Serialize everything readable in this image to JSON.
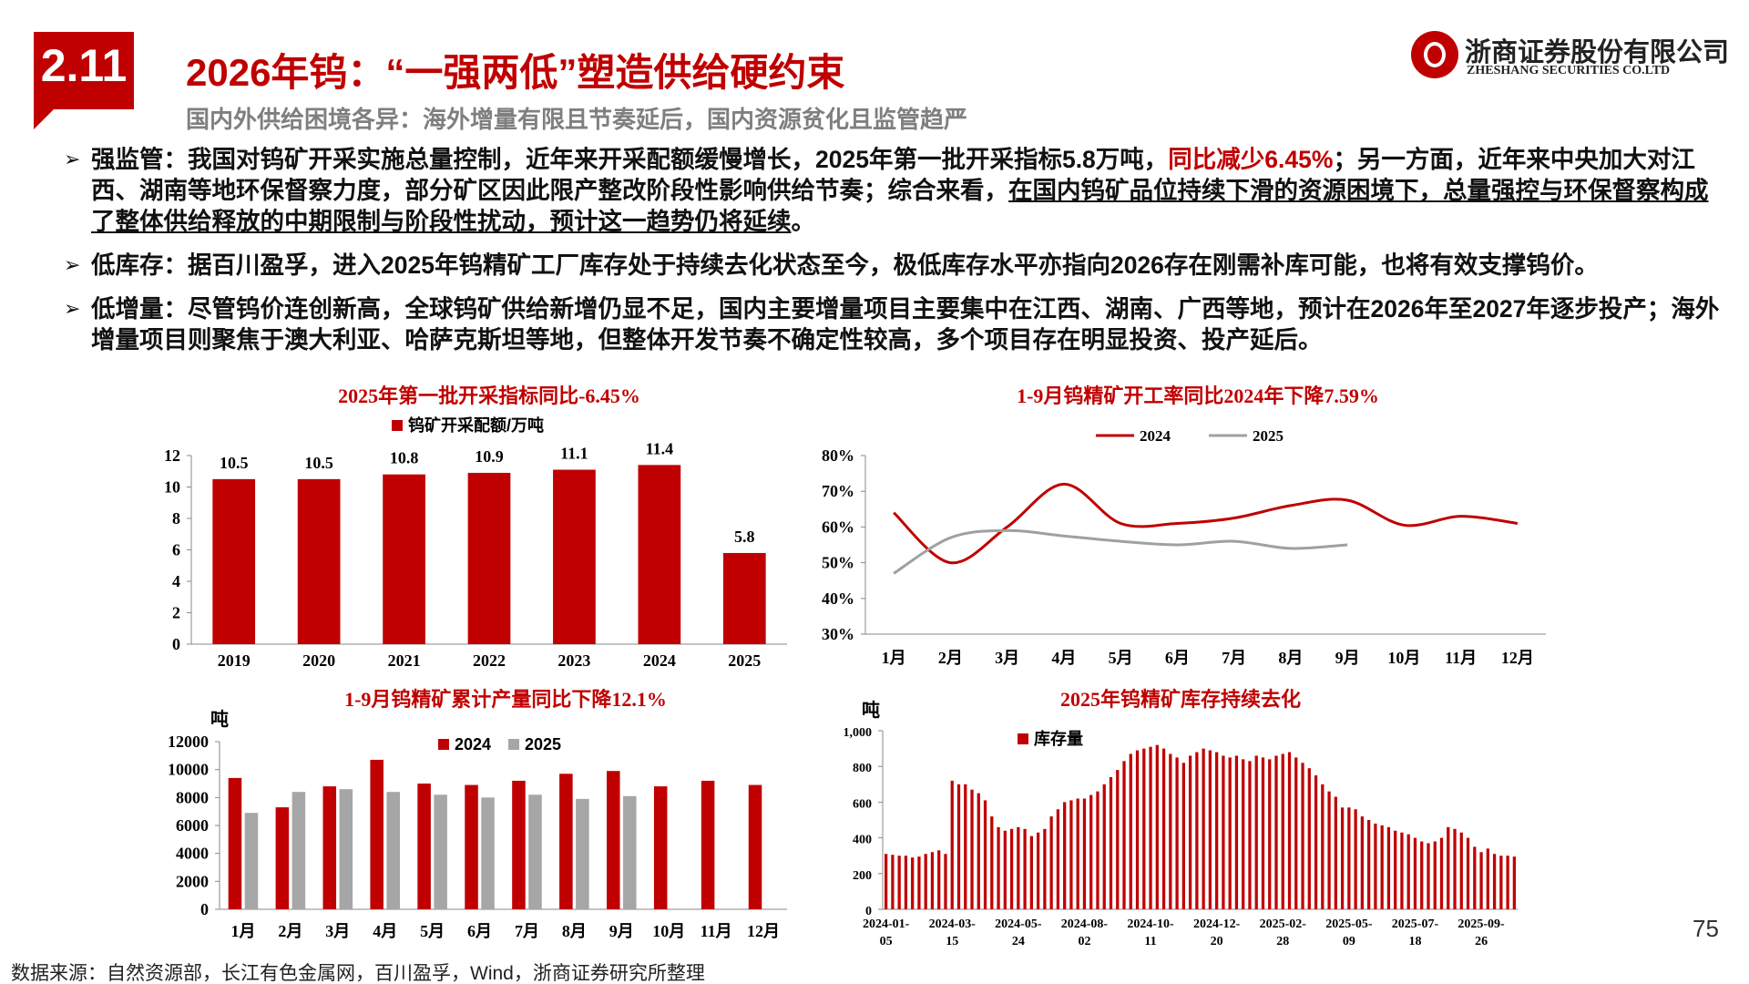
{
  "header": {
    "badge": "2.11",
    "title": "2026年钨：“一强两低”塑造供给硬约束",
    "subtitle": "国内外供给困境各异：海外增量有限且节奏延后，国内资源贫化且监管趋严",
    "company": "浙商证券股份有限公司",
    "company_en": "ZHESHANG SECURITIES CO.LTD"
  },
  "bullets": [
    [
      {
        "text": "强监管：我国对钨矿开采实施总量控制，近年来开采配额缓慢增长，2025年第一批开采指标5.8万吨，",
        "style": "normal"
      },
      {
        "text": "同比减少6.45%",
        "style": "red"
      },
      {
        "text": "；另一方面，近年来中央加大对江西、湖南等地环保督察力度，部分矿区因此限产整改阶段性影响供给节奏；综合来看，",
        "style": "normal"
      },
      {
        "text": "在国内钨矿品位持续下滑的资源困境下，总量强控与环保督察构成了整体供给释放的中期限制与阶段性扰动，预计这一趋势仍将延续",
        "style": "underline"
      },
      {
        "text": "。",
        "style": "normal"
      }
    ],
    [
      {
        "text": "低库存：据百川盈孚，进入2025年钨精矿工厂库存处于持续去化状态至今，极低库存水平亦指向2026存在刚需补库可能，也将有效支撑钨价。",
        "style": "normal"
      }
    ],
    [
      {
        "text": "低增量：尽管钨价连创新高，全球钨矿供给新增仍显不足，国内主要增量项目主要集中在江西、湖南、广西等地，预计在2026年至2027年逐步投产；海外增量项目则聚焦于澳大利亚、哈萨克斯坦等地，但整体开发节奏不确定性较高，多个项目存在明显投资、投产延后。",
        "style": "normal"
      }
    ]
  ],
  "page_number": "75",
  "source": "数据来源：自然资源部，长江有色金属网，百川盈孚，Wind，浙商证券研究所整理",
  "chart_data": [
    {
      "type": "bar",
      "title": "2025年第一批开采指标同比-6.45%",
      "categories": [
        "2019",
        "2020",
        "2021",
        "2022",
        "2023",
        "2024",
        "2025"
      ],
      "series": [
        {
          "name": "钨矿开采配额/万吨",
          "color": "#c00000",
          "values": [
            10.5,
            10.5,
            10.8,
            10.9,
            11.1,
            11.4,
            5.8
          ]
        }
      ],
      "ylim": [
        0,
        12
      ],
      "yticks": [
        0,
        2,
        4,
        6,
        8,
        10,
        12
      ],
      "data_labels": true,
      "grid": false
    },
    {
      "type": "line",
      "title": "1-9月钨精矿开工率同比2024年下降7.59%",
      "categories": [
        "1月",
        "2月",
        "3月",
        "4月",
        "5月",
        "6月",
        "7月",
        "8月",
        "9月",
        "10月",
        "11月",
        "12月"
      ],
      "series": [
        {
          "name": "2024",
          "color": "#c00000",
          "values": [
            64,
            50,
            60,
            72,
            61,
            61,
            62.5,
            66,
            67.5,
            60.5,
            63,
            61
          ]
        },
        {
          "name": "2025",
          "color": "#a0a0a0",
          "values": [
            47,
            57,
            59,
            57.5,
            56,
            55,
            56,
            54,
            55,
            null,
            null,
            null
          ]
        }
      ],
      "ylim": [
        30,
        80
      ],
      "yticks": [
        {
          "value": 30,
          "label": "30%"
        },
        {
          "value": 40,
          "label": "40%"
        },
        {
          "value": 50,
          "label": "50%"
        },
        {
          "value": 60,
          "label": "60%"
        },
        {
          "value": 70,
          "label": "70%"
        },
        {
          "value": 80,
          "label": "80%"
        }
      ],
      "grid": false
    },
    {
      "type": "bar",
      "title": "1-9月钨精矿累计产量同比下降12.1%",
      "y_label": "吨",
      "categories": [
        "1月",
        "2月",
        "3月",
        "4月",
        "5月",
        "6月",
        "7月",
        "8月",
        "9月",
        "10月",
        "11月",
        "12月"
      ],
      "series": [
        {
          "name": "2024",
          "color": "#c00000",
          "values": [
            9400,
            7300,
            8800,
            10700,
            9000,
            8900,
            9200,
            9700,
            9900,
            8800,
            9200,
            8900
          ]
        },
        {
          "name": "2025",
          "color": "#a6a6a6",
          "values": [
            6900,
            8400,
            8600,
            8400,
            8200,
            8000,
            8200,
            7900,
            8100,
            null,
            null,
            null
          ]
        }
      ],
      "ylim": [
        0,
        12000
      ],
      "yticks": [
        0,
        2000,
        4000,
        6000,
        8000,
        10000,
        12000
      ],
      "grid": false
    },
    {
      "type": "bar",
      "title": "2025年钨精矿库存持续去化",
      "y_label": "吨",
      "categories": [
        "2024-01-05",
        null,
        null,
        null,
        null,
        null,
        null,
        null,
        null,
        null,
        "2024-03-15",
        null,
        null,
        null,
        null,
        null,
        null,
        null,
        null,
        null,
        "2024-05-24",
        null,
        null,
        null,
        null,
        null,
        null,
        null,
        null,
        null,
        "2024-08-02",
        null,
        null,
        null,
        null,
        null,
        null,
        null,
        null,
        null,
        "2024-10-11",
        null,
        null,
        null,
        null,
        null,
        null,
        null,
        null,
        null,
        "2024-12-20",
        null,
        null,
        null,
        null,
        null,
        null,
        null,
        null,
        null,
        "2025-02-28",
        null,
        null,
        null,
        null,
        null,
        null,
        null,
        null,
        null,
        "2025-05-09",
        null,
        null,
        null,
        null,
        null,
        null,
        null,
        null,
        null,
        "2025-07-18",
        null,
        null,
        null,
        null,
        null,
        null,
        null,
        null,
        null,
        "2025-09-26",
        null,
        null,
        null,
        null,
        null
      ],
      "series": [
        {
          "name": "库存量",
          "color": "#c00000",
          "values": [
            310,
            305,
            300,
            300,
            290,
            295,
            310,
            320,
            330,
            310,
            720,
            700,
            700,
            670,
            650,
            610,
            520,
            460,
            440,
            450,
            460,
            450,
            410,
            430,
            450,
            520,
            560,
            600,
            610,
            620,
            620,
            640,
            660,
            700,
            740,
            780,
            830,
            870,
            890,
            900,
            910,
            920,
            900,
            870,
            850,
            820,
            860,
            880,
            900,
            890,
            880,
            860,
            850,
            860,
            840,
            830,
            860,
            850,
            840,
            860,
            870,
            880,
            850,
            820,
            790,
            750,
            700,
            660,
            630,
            570,
            570,
            560,
            520,
            500,
            480,
            470,
            460,
            440,
            430,
            420,
            400,
            380,
            370,
            380,
            400,
            460,
            450,
            430,
            400,
            350,
            320,
            340,
            310,
            300,
            300,
            295
          ]
        }
      ],
      "ylim": [
        0,
        1000
      ],
      "yticks": [
        0,
        200,
        400,
        600,
        800,
        {
          "value": 1000,
          "label": "1,000"
        }
      ],
      "grid": false
    }
  ]
}
